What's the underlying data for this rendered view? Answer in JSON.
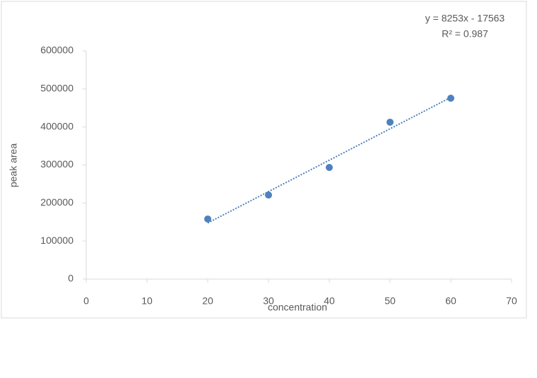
{
  "chart_data": {
    "type": "scatter",
    "x": [
      20,
      30,
      40,
      50,
      60
    ],
    "values": [
      158000,
      221000,
      293500,
      412500,
      475500
    ],
    "color": "#4f81bd",
    "xlabel": "concentration",
    "ylabel": "peak area",
    "xlim": [
      0,
      70
    ],
    "xticks": [
      0,
      10,
      20,
      30,
      40,
      50,
      60,
      70
    ],
    "ylim": [
      0,
      600000
    ],
    "yticks": [
      0,
      100000,
      200000,
      300000,
      400000,
      500000,
      600000
    ],
    "grid": false,
    "trendline": {
      "slope": 8253,
      "intercept": -17563,
      "equation": "y = 8253x - 17563",
      "r2": "R² = 0.987",
      "style": "dotted"
    }
  }
}
